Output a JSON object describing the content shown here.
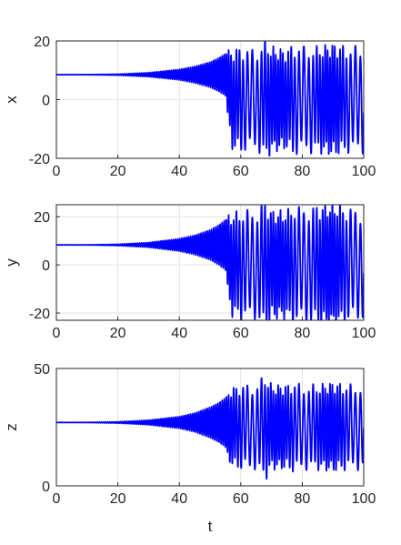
{
  "chart_data": [
    {
      "type": "line",
      "ylabel": "x",
      "xlabel": "",
      "xlim": [
        0,
        100
      ],
      "ylim": [
        -20,
        20
      ],
      "xticks": [
        0,
        20,
        40,
        60,
        80,
        100
      ],
      "yticks": [
        -20,
        0,
        20
      ],
      "grid": true,
      "series": [
        {
          "color": "#0000ff",
          "t": [
            0,
            10,
            20,
            30,
            40,
            45,
            50,
            53,
            55,
            57,
            60,
            65,
            68,
            70,
            75,
            77,
            80,
            85,
            90,
            95,
            100
          ],
          "center": [
            8.5,
            8.5,
            8.5,
            8.5,
            8.5,
            8.5,
            8.5,
            8.5,
            8.5,
            0,
            0,
            0,
            0,
            0,
            0,
            0,
            0,
            0,
            0,
            0,
            0
          ],
          "amplitude": [
            0,
            0.05,
            0.2,
            0.7,
            1.8,
            2.8,
            4.3,
            5.8,
            7.2,
            15,
            16,
            15,
            18,
            16,
            15,
            17,
            16,
            16,
            17,
            16,
            16
          ]
        }
      ]
    },
    {
      "type": "line",
      "ylabel": "y",
      "xlabel": "",
      "xlim": [
        0,
        100
      ],
      "ylim": [
        -23,
        25
      ],
      "xticks": [
        0,
        20,
        40,
        60,
        80,
        100
      ],
      "yticks": [
        -20,
        0,
        20
      ],
      "grid": true,
      "series": [
        {
          "color": "#0000ff",
          "t": [
            0,
            10,
            20,
            30,
            40,
            45,
            50,
            53,
            55,
            57,
            60,
            65,
            68,
            70,
            75,
            77,
            80,
            85,
            90,
            95,
            100
          ],
          "center": [
            8.3,
            8.3,
            8.3,
            8.3,
            8.3,
            8.3,
            8.3,
            8.3,
            8.3,
            0,
            0,
            0,
            0,
            0,
            0,
            0,
            0,
            0,
            0,
            0,
            0
          ],
          "amplitude": [
            0,
            0.05,
            0.3,
            1.0,
            2.6,
            4.0,
            6.2,
            8.4,
            10.5,
            19,
            20,
            20,
            24,
            20,
            20,
            22,
            21,
            22,
            23,
            21,
            20
          ]
        }
      ]
    },
    {
      "type": "line",
      "ylabel": "z",
      "xlabel": "t",
      "xlim": [
        0,
        100
      ],
      "ylim": [
        0,
        50
      ],
      "xticks": [
        0,
        20,
        40,
        60,
        80,
        100
      ],
      "yticks": [
        0,
        50
      ],
      "grid": true,
      "series": [
        {
          "color": "#0000ff",
          "t": [
            0,
            10,
            20,
            30,
            40,
            45,
            50,
            53,
            55,
            57,
            60,
            65,
            68,
            70,
            75,
            77,
            80,
            85,
            90,
            95,
            100
          ],
          "center": [
            27,
            27,
            27,
            27,
            27,
            27,
            27,
            27,
            27,
            25,
            25,
            25,
            25,
            25,
            25,
            25,
            25,
            25,
            25,
            25,
            25
          ],
          "amplitude": [
            0,
            0.05,
            0.3,
            1.0,
            2.5,
            4.0,
            6.5,
            8.5,
            10.5,
            15,
            16,
            16,
            20,
            16,
            16,
            17,
            16,
            16,
            17,
            16,
            16
          ]
        }
      ]
    }
  ]
}
